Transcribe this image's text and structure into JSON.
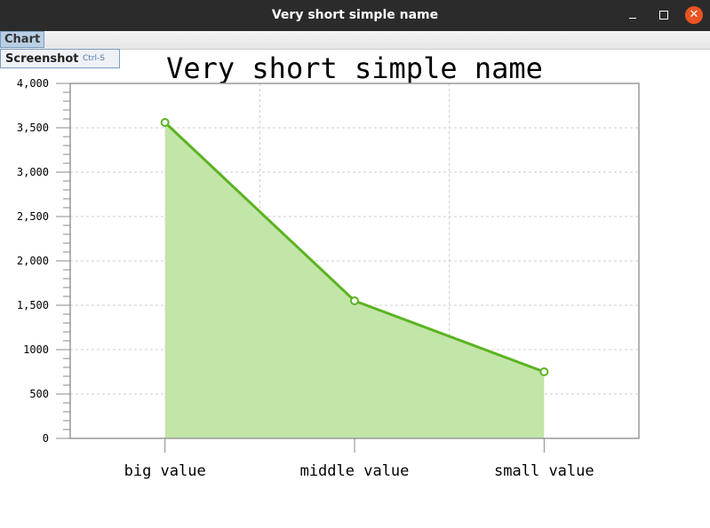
{
  "window": {
    "title": "Very short simple name"
  },
  "menu": {
    "chart_label": "Chart",
    "items": [
      {
        "label": "Screenshot",
        "accel": "Ctrl-S"
      }
    ]
  },
  "colors": {
    "series": "#5bb321",
    "fill": "#c2e5a8",
    "titlebar": "#2b2b2b",
    "close": "#e95420"
  },
  "chart_data": {
    "type": "area",
    "title": "Very short simple name",
    "categories": [
      "big value",
      "middle value",
      "small value"
    ],
    "values": [
      3560,
      1550,
      750
    ],
    "ylim": [
      0,
      4000
    ],
    "yticks": [
      0,
      500,
      1000,
      1500,
      2000,
      2500,
      3000,
      3500,
      4000
    ],
    "ytick_labels": [
      "0",
      "500",
      "1000",
      "1,500",
      "2,000",
      "2,500",
      "3,000",
      "3,500",
      "4,000"
    ],
    "xlabel": "",
    "ylabel": "",
    "grid": true
  }
}
